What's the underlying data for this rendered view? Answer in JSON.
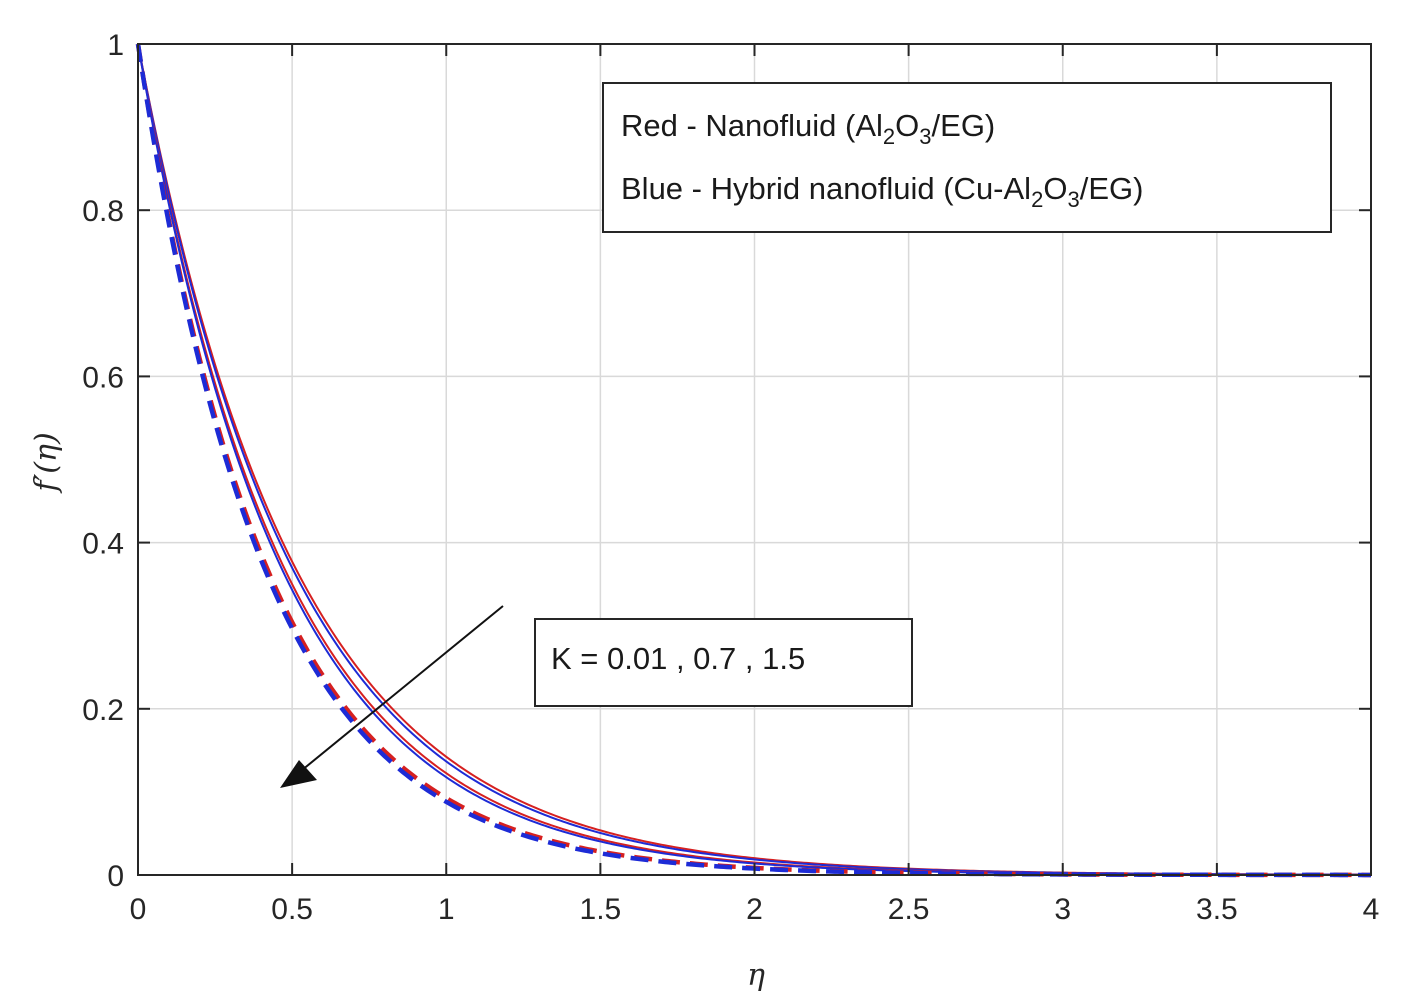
{
  "chart_data": {
    "type": "line",
    "xlabel": "η",
    "ylabel": "f′(η)",
    "xlim": [
      0,
      4
    ],
    "ylim": [
      0,
      1
    ],
    "x_ticks": [
      "0",
      "0.5",
      "1",
      "1.5",
      "2",
      "2.5",
      "3",
      "3.5",
      "4"
    ],
    "y_ticks": [
      "0",
      "0.2",
      "0.4",
      "0.6",
      "0.8",
      "1"
    ],
    "grid": true,
    "legend": {
      "position": "top-right",
      "line1": {
        "text": "Red - Nanofluid (Al",
        "sub1": "2",
        "mid": "O",
        "sub2": "3",
        "tail": "/EG)"
      },
      "line2": {
        "text": "Blue - Hybrid nanofluid (Cu-Al",
        "sub1": "2",
        "mid": "O",
        "sub2": "3",
        "tail": "/EG)"
      }
    },
    "annotation": {
      "text": "K = 0.01 , 0.7 , 1.5",
      "arrow": "points toward decreasing curves"
    },
    "series": [
      {
        "name": "Nanofluid K=0.01",
        "color": "#d62020",
        "style": "solid",
        "decay_rate": 1.95
      },
      {
        "name": "Hybrid nanofluid K=0.01",
        "color": "#1d2bd6",
        "style": "solid",
        "decay_rate": 1.99
      },
      {
        "name": "Nanofluid K=0.7",
        "color": "#d62020",
        "style": "solid",
        "decay_rate": 2.1
      },
      {
        "name": "Hybrid nanofluid K=0.7",
        "color": "#1d2bd6",
        "style": "solid",
        "decay_rate": 2.14
      },
      {
        "name": "Nanofluid K=1.5",
        "color": "#d62020",
        "style": "dashed",
        "decay_rate": 2.38
      },
      {
        "name": "Hybrid nanofluid K=1.5",
        "color": "#1d2bd6",
        "style": "dashed",
        "decay_rate": 2.43
      }
    ]
  }
}
